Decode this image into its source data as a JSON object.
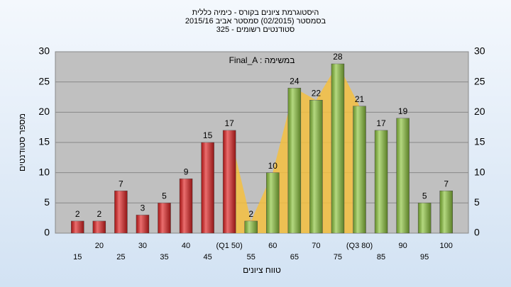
{
  "chart_data": {
    "type": "bar",
    "title": [
      "היסטוגרמת ציונים בקורס - כימיה כללית",
      "בסמסטר  (02/2015)  סמסטר אביב 2015/16",
      "סטודנטים רשומים - 325"
    ],
    "annotation": "Final_A : במשימה",
    "xlabel": "טווח ציונים",
    "ylabel": "מספר סטודנטים",
    "categories": [
      "15",
      "20",
      "25",
      "30",
      "35",
      "40",
      "45",
      "(Q1 50)",
      "55",
      "60",
      "65",
      "70",
      "75",
      "(Q3 80)",
      "85",
      "90",
      "95",
      "100"
    ],
    "values": [
      2,
      2,
      7,
      3,
      5,
      9,
      15,
      17,
      2,
      10,
      24,
      22,
      28,
      21,
      17,
      19,
      5,
      7
    ],
    "colors": [
      "#e02020",
      "#e02020",
      "#e02020",
      "#e02020",
      "#e02020",
      "#e02020",
      "#e02020",
      "#e02020",
      "#8cc43c",
      "#8cc43c",
      "#8cc43c",
      "#8cc43c",
      "#8cc43c",
      "#8cc43c",
      "#8cc43c",
      "#8cc43c",
      "#8cc43c",
      "#8cc43c"
    ],
    "ylim": [
      0,
      30
    ],
    "yticks": [
      0,
      5,
      10,
      15,
      20,
      25,
      30
    ],
    "grid": true
  }
}
